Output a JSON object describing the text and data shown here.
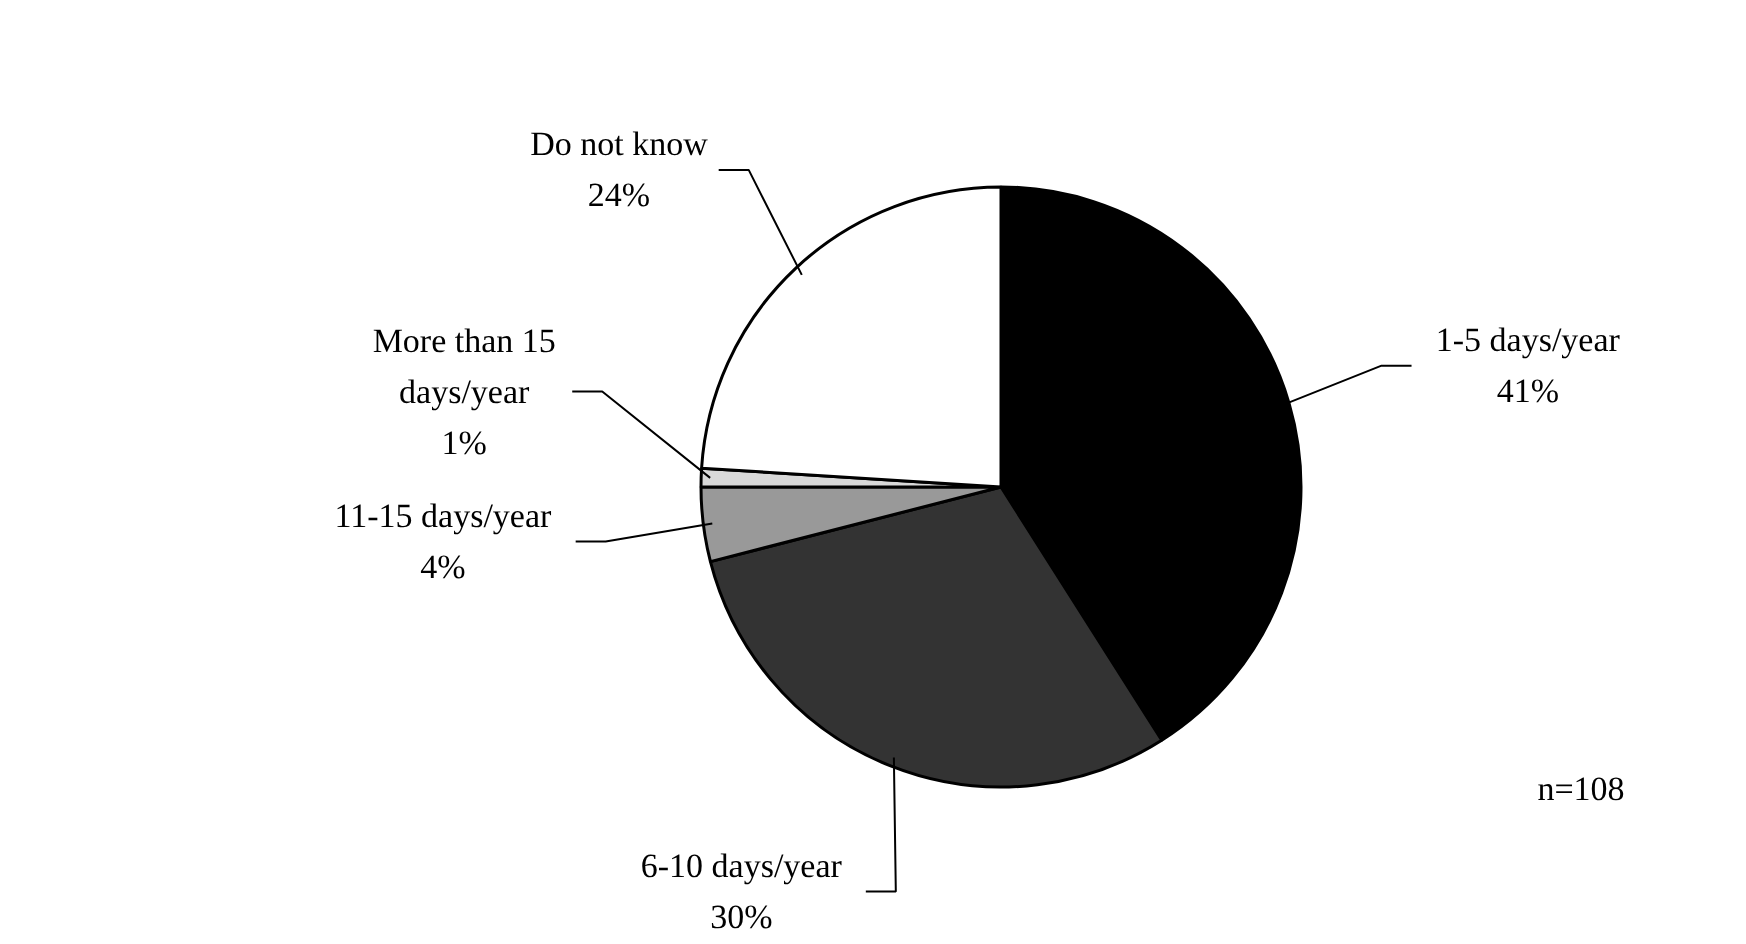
{
  "chart_data": {
    "type": "pie",
    "categories": [
      "1-5 days/year",
      "6-10 days/year",
      "11-15 days/year",
      "More than 15 days/year",
      "Do not know"
    ],
    "values": [
      41,
      30,
      4,
      1,
      24
    ],
    "colors": [
      "#000000",
      "#333333",
      "#999999",
      "#d9d9d9",
      "#ffffff"
    ],
    "value_labels": [
      "41%",
      "30%",
      "4%",
      "1%",
      "24%"
    ],
    "annotations": [
      "n=108"
    ]
  }
}
